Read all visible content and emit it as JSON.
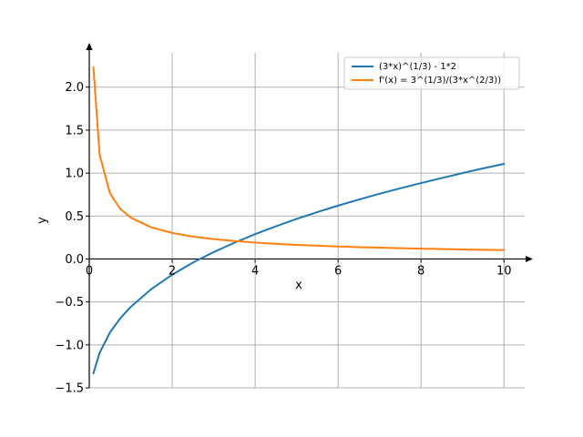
{
  "chart_data": {
    "type": "line",
    "title": "",
    "xlabel": "x",
    "ylabel": "y",
    "xlim": [
      0,
      10.5
    ],
    "ylim": [
      -1.5,
      2.4
    ],
    "grid": true,
    "legend_position": "top-right",
    "x_ticks": [
      0,
      2,
      4,
      6,
      8,
      10
    ],
    "x_tick_labels": [
      "0",
      "2",
      "4",
      "6",
      "8",
      "10"
    ],
    "y_ticks": [
      -1.5,
      -1.0,
      -0.5,
      0.0,
      0.5,
      1.0,
      1.5,
      2.0
    ],
    "y_tick_labels": [
      "−1.5",
      "−1.0",
      "−0.5",
      "0.0",
      "0.5",
      "1.0",
      "1.5",
      "2.0"
    ],
    "series": [
      {
        "name": "(3*x)^(1/3) - 1*2",
        "color": "#1f77b4",
        "x": [
          0.1,
          0.25,
          0.5,
          0.75,
          1,
          1.5,
          2,
          2.5,
          3,
          3.5,
          4,
          4.5,
          5,
          5.5,
          6,
          6.5,
          7,
          7.5,
          8,
          8.5,
          9,
          9.5,
          10
        ],
        "y": [
          -1.331,
          -1.091,
          -0.855,
          -0.689,
          -0.558,
          -0.349,
          -0.183,
          -0.042,
          0.08,
          0.189,
          0.289,
          0.381,
          0.466,
          0.546,
          0.621,
          0.692,
          0.759,
          0.823,
          0.884,
          0.942,
          1.0,
          1.055,
          1.107
        ]
      },
      {
        "name": "f'(x) = 3^(1/3)/(3*x^(2/3))",
        "color": "#ff7f0e",
        "x": [
          0.1,
          0.25,
          0.5,
          0.75,
          1,
          1.5,
          2,
          2.5,
          3,
          3.5,
          4,
          4.5,
          5,
          5.5,
          6,
          6.5,
          7,
          7.5,
          8,
          8.5,
          9,
          9.5,
          10
        ],
        "y": [
          2.231,
          1.211,
          0.763,
          0.582,
          0.481,
          0.367,
          0.303,
          0.261,
          0.231,
          0.209,
          0.191,
          0.176,
          0.164,
          0.154,
          0.146,
          0.138,
          0.132,
          0.126,
          0.12,
          0.116,
          0.111,
          0.107,
          0.104
        ]
      }
    ]
  }
}
